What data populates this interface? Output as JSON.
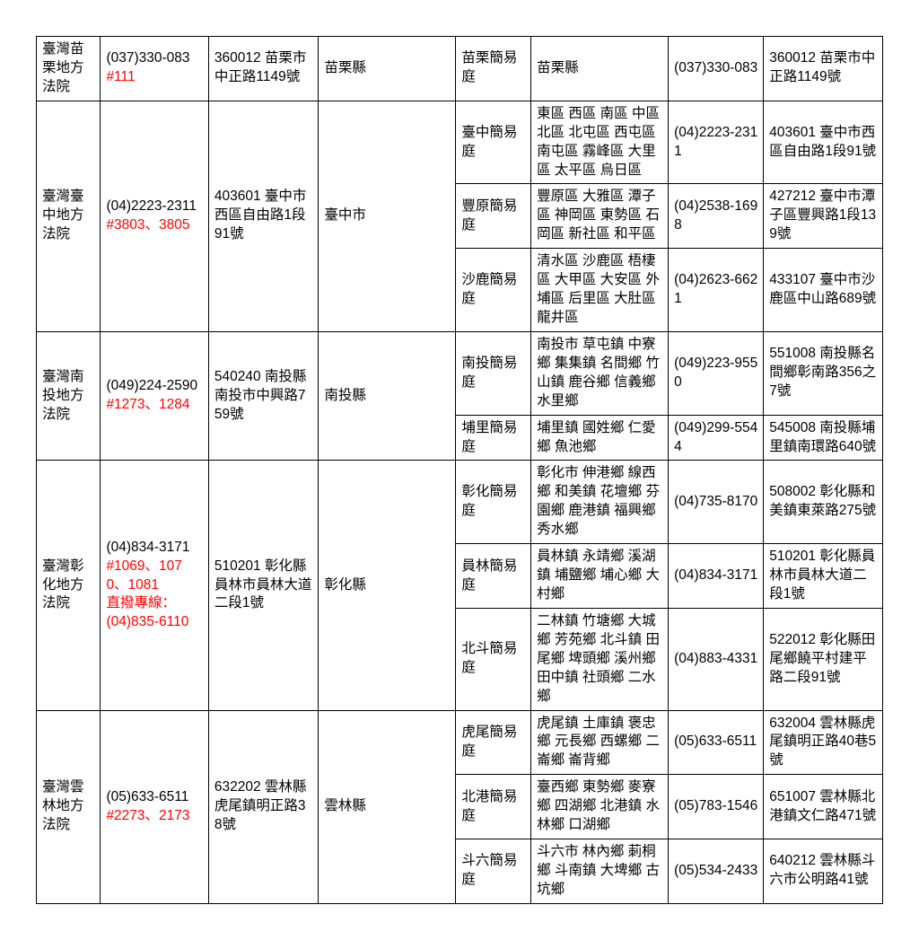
{
  "colors": {
    "text": "#000000",
    "highlight": "#ff0000",
    "border": "#000000",
    "bg": "#ffffff"
  },
  "fontsize": 15.5,
  "rows": [
    {
      "court": "臺灣苗栗地方法院",
      "phone": "(037)330-083",
      "ext": "#111",
      "addr": "360012 苗栗市中正路1149號",
      "county": "苗栗縣",
      "subs": [
        {
          "name": "苗栗簡易庭",
          "area": "苗栗縣",
          "phone": "(037)330-083",
          "addr": "360012 苗栗市中正路1149號"
        }
      ]
    },
    {
      "court": "臺灣臺中地方法院",
      "phone": "(04)2223-2311",
      "ext": "#3803、3805",
      "addr": "403601 臺中市西區自由路1段91號",
      "county": "臺中市",
      "subs": [
        {
          "name": "臺中簡易庭",
          "area": "東區 西區 南區 中區 北區 北屯區 西屯區 南屯區 霧峰區 大里區 太平區 烏日區",
          "phone": "(04)2223-2311",
          "addr": "403601 臺中市西區自由路1段91號"
        },
        {
          "name": "豐原簡易庭",
          "area": "豐原區 大雅區 潭子區 神岡區 東勢區 石岡區 新社區 和平區",
          "phone": "(04)2538-1698",
          "addr": "427212 臺中市潭子區豐興路1段139號"
        },
        {
          "name": "沙鹿簡易庭",
          "area": "清水區 沙鹿區 梧棲區 大甲區 大安區 外埔區 后里區 大肚區 龍井區",
          "phone": "(04)2623-6621",
          "addr": "433107 臺中市沙鹿區中山路689號"
        }
      ]
    },
    {
      "court": "臺灣南投地方法院",
      "phone": "(049)224-2590",
      "ext": "#1273、1284",
      "addr": "540240 南投縣南投市中興路759號",
      "county": "南投縣",
      "subs": [
        {
          "name": "南投簡易庭",
          "area": "南投市 草屯鎮 中寮鄉 集集鎮 名間鄉 竹山鎮 鹿谷鄉 信義鄉 水里鄉",
          "phone": "(049)223-9550",
          "addr": "551008 南投縣名間鄉彰南路356之7號"
        },
        {
          "name": "埔里簡易庭",
          "area": "埔里鎮 國姓鄉 仁愛鄉 魚池鄉",
          "phone": "(049)299-5544",
          "addr": "545008 南投縣埔里鎮南環路640號"
        }
      ]
    },
    {
      "court": "臺灣彰化地方法院",
      "phone": "(04)834-3171",
      "ext": "#1069、1070、1081",
      "extraLabel": "直撥專線：",
      "extraPhone": "(04)835-6110",
      "addr": "510201 彰化縣員林市員林大道二段1號",
      "county": "彰化縣",
      "subs": [
        {
          "name": "彰化簡易庭",
          "area": "彰化市 伸港鄉 線西鄉 和美鎮 花壇鄉 芬園鄉 鹿港鎮 福興鄉 秀水鄉",
          "phone": "(04)735-8170",
          "addr": "508002 彰化縣和美鎮東萊路275號"
        },
        {
          "name": "員林簡易庭",
          "area": "員林鎮 永靖鄉 溪湖鎮 埔鹽鄉 埔心鄉 大村鄉",
          "phone": "(04)834-3171",
          "addr": "510201 彰化縣員林市員林大道二段1號"
        },
        {
          "name": "北斗簡易庭",
          "area": "二林鎮 竹塘鄉 大城鄉 芳苑鄉 北斗鎮 田尾鄉 埤頭鄉 溪州鄉 田中鎮 社頭鄉 二水鄉",
          "phone": "(04)883-4331",
          "addr": "522012 彰化縣田尾鄉饒平村建平路二段91號"
        }
      ]
    },
    {
      "court": "臺灣雲林地方法院",
      "phone": "(05)633-6511",
      "ext": "#2273、2173",
      "addr": "632202 雲林縣虎尾鎮明正路38號",
      "county": "雲林縣",
      "subs": [
        {
          "name": "虎尾簡易庭",
          "area": "虎尾鎮 土庫鎮 褒忠鄉 元長鄉 西螺鄉 二崙鄉 崙背鄉",
          "phone": "(05)633-6511",
          "addr": "632004 雲林縣虎尾鎮明正路40巷5號"
        },
        {
          "name": "北港簡易庭",
          "area": "臺西鄉 東勢鄉 麥寮鄉 四湖鄉 北港鎮 水林鄉 口湖鄉",
          "phone": "(05)783-1546",
          "addr": "651007 雲林縣北港鎮文仁路471號"
        },
        {
          "name": "斗六簡易庭",
          "area": "斗六市 林內鄉 莿桐鄉 斗南鎮 大埤鄉 古坑鄉",
          "phone": "(05)534-2433",
          "addr": "640212 雲林縣斗六市公明路41號"
        }
      ]
    }
  ]
}
